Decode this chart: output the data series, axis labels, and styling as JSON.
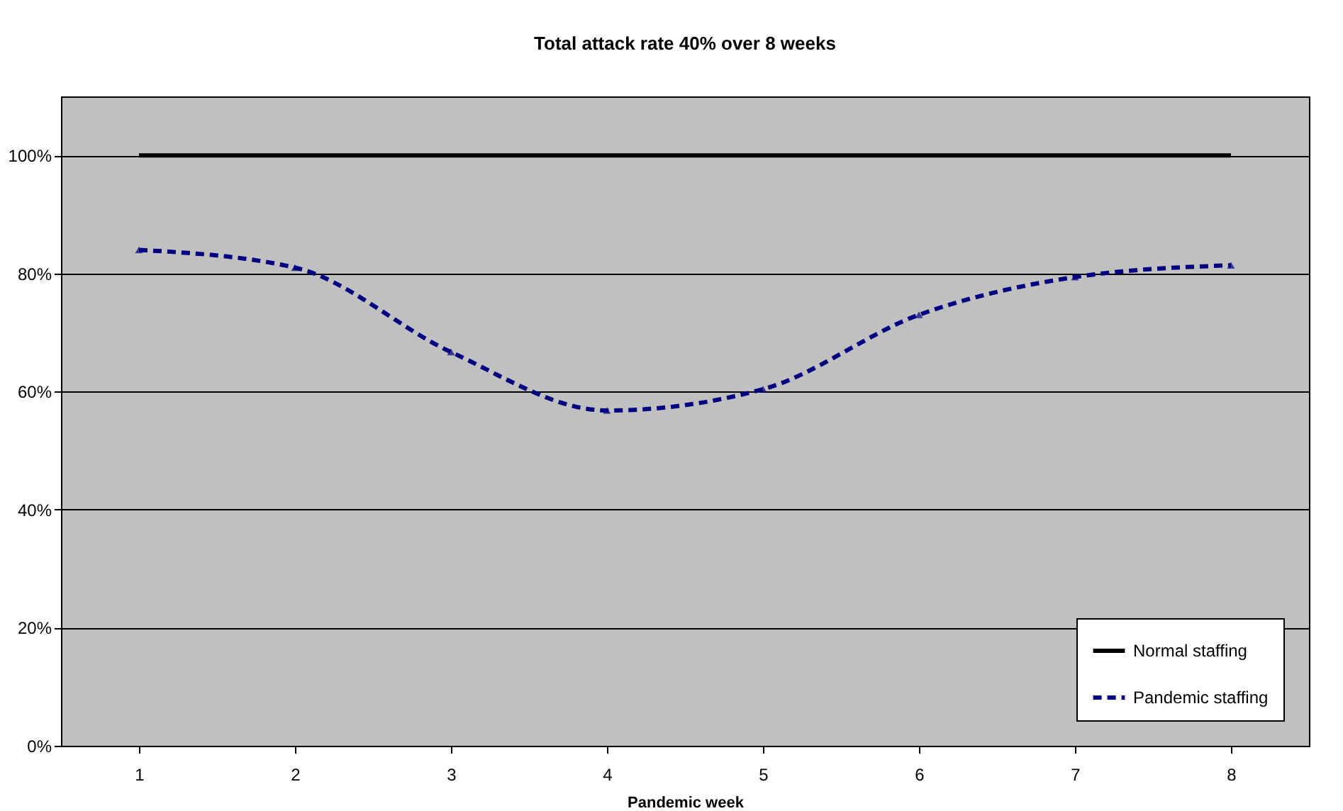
{
  "chart_data": {
    "type": "line",
    "title": "Total attack rate 40% over 8 weeks",
    "xlabel": "Pandemic week",
    "categories": [
      "1",
      "2",
      "3",
      "4",
      "5",
      "6",
      "7",
      "8"
    ],
    "series": [
      {
        "name": "Normal staffing",
        "color": "#000000",
        "values": [
          100,
          100,
          100,
          100,
          100,
          100,
          100,
          100
        ],
        "line_style": "solid",
        "marker": "none"
      },
      {
        "name": "Pandemic staffing",
        "color": "#000080",
        "values": [
          84,
          81,
          66.7,
          56.8,
          60.4,
          73,
          79.4,
          81.4
        ],
        "line_style": "dashed",
        "marker": "triangle"
      }
    ],
    "ylim": [
      0,
      110
    ],
    "yticks": [
      {
        "value": 0,
        "label": "0%"
      },
      {
        "value": 20,
        "label": "20%"
      },
      {
        "value": 40,
        "label": "40%"
      },
      {
        "value": 60,
        "label": "60%"
      },
      {
        "value": 80,
        "label": "80%"
      },
      {
        "value": 100,
        "label": "100%"
      }
    ],
    "grid": "y",
    "legend": "bottom right"
  }
}
